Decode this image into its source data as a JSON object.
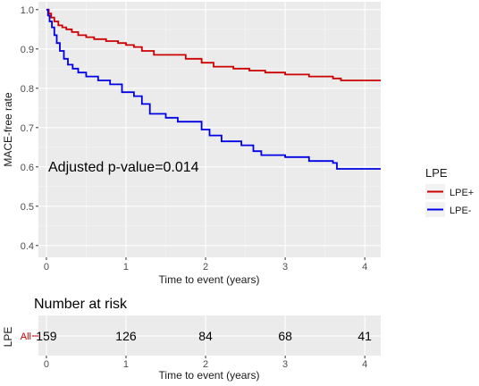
{
  "chart_data": [
    {
      "type": "line",
      "step": true,
      "xlabel": "Time to event (years)",
      "ylabel": "MACE-free rate",
      "xlim": [
        -0.1,
        4.2
      ],
      "ylim": [
        0.37,
        1.02
      ],
      "xticks": [
        "0",
        "1",
        "2",
        "3",
        "4"
      ],
      "yticks": [
        "0.4",
        "0.5",
        "0.6",
        "0.7",
        "0.8",
        "0.9",
        "1.0"
      ],
      "grid": true,
      "legend": {
        "title": "LPE",
        "placement": "right"
      },
      "annotation": "Adjusted p-value=0.014",
      "series": [
        {
          "name": "LPE+",
          "color": "#cc0000",
          "x": [
            0,
            0.03,
            0.06,
            0.1,
            0.15,
            0.2,
            0.25,
            0.32,
            0.4,
            0.5,
            0.6,
            0.75,
            0.9,
            1.0,
            1.1,
            1.2,
            1.35,
            1.5,
            1.75,
            1.95,
            2.1,
            2.35,
            2.55,
            2.75,
            3.0,
            3.3,
            3.6,
            3.7,
            4.2
          ],
          "y": [
            1.0,
            0.99,
            0.98,
            0.97,
            0.96,
            0.955,
            0.95,
            0.943,
            0.935,
            0.93,
            0.925,
            0.92,
            0.915,
            0.91,
            0.905,
            0.895,
            0.885,
            0.885,
            0.875,
            0.865,
            0.855,
            0.85,
            0.845,
            0.84,
            0.835,
            0.83,
            0.825,
            0.82,
            0.82
          ]
        },
        {
          "name": "LPE-",
          "color": "#0000e6",
          "x": [
            0,
            0.02,
            0.04,
            0.07,
            0.1,
            0.13,
            0.17,
            0.22,
            0.27,
            0.33,
            0.4,
            0.5,
            0.65,
            0.8,
            0.95,
            1.1,
            1.2,
            1.3,
            1.5,
            1.65,
            1.95,
            2.05,
            2.2,
            2.45,
            2.6,
            2.7,
            3.0,
            3.3,
            3.6,
            3.65,
            4.2
          ],
          "y": [
            1.0,
            0.985,
            0.97,
            0.955,
            0.935,
            0.915,
            0.895,
            0.875,
            0.86,
            0.85,
            0.84,
            0.83,
            0.82,
            0.81,
            0.79,
            0.78,
            0.76,
            0.735,
            0.725,
            0.715,
            0.695,
            0.68,
            0.665,
            0.655,
            0.64,
            0.63,
            0.625,
            0.615,
            0.61,
            0.595,
            0.595
          ]
        }
      ]
    },
    {
      "type": "table",
      "title": "Number at risk",
      "ylabel": "LPE",
      "row_label": "All",
      "xlabel": "Time to event (years)",
      "xticks": [
        "0",
        "1",
        "2",
        "3",
        "4"
      ],
      "x": [
        0,
        1,
        2,
        3,
        4
      ],
      "values": [
        "159",
        "126",
        "84",
        "68",
        "41"
      ]
    }
  ]
}
